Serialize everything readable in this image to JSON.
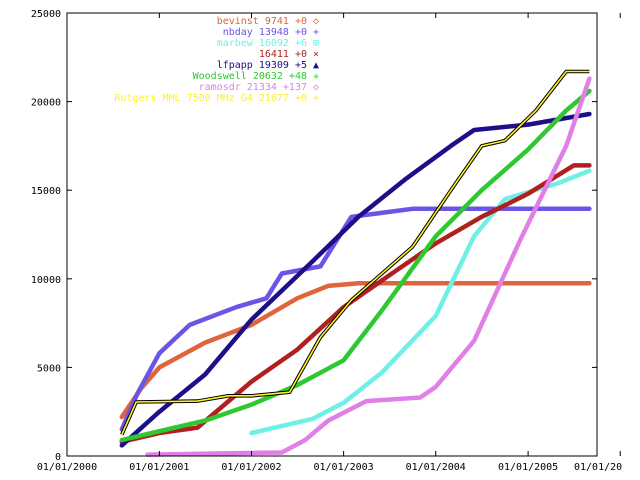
{
  "chart_data": {
    "type": "line",
    "title": "",
    "xlabel": "",
    "ylabel": "",
    "grid": false,
    "legend_position": "top-right",
    "xlim": [
      "2000-01-01",
      "2005-10-01"
    ],
    "ylim": [
      0,
      25000
    ],
    "x_ticks": [
      "01/01/2000",
      "01/01/2001",
      "01/01/2002",
      "01/01/2003",
      "01/01/2004",
      "01/01/2005",
      "01/01/20"
    ],
    "y_ticks": [
      "0",
      "5000",
      "10000",
      "15000",
      "20000",
      "25000"
    ],
    "series": [
      {
        "name": "bevinst",
        "legend_text": "bevinst 9741 +0",
        "marker": "◇",
        "color": "#e0643c",
        "points": [
          [
            "2000-08-05",
            2200
          ],
          [
            "2000-10-20",
            3800
          ],
          [
            "2001-01-01",
            5000
          ],
          [
            "2001-07-01",
            6400
          ],
          [
            "2002-01-01",
            7400
          ],
          [
            "2002-07-01",
            8900
          ],
          [
            "2002-11-01",
            9600
          ],
          [
            "2003-03-01",
            9750
          ],
          [
            "2005-09-01",
            9750
          ]
        ]
      },
      {
        "name": "nbday",
        "legend_text": "nbday 13948 +0",
        "marker": "+",
        "color": "#6a55e6",
        "points": [
          [
            "2000-08-05",
            1500
          ],
          [
            "2000-10-05",
            3500
          ],
          [
            "2001-01-01",
            5800
          ],
          [
            "2001-05-01",
            7400
          ],
          [
            "2001-11-01",
            8400
          ],
          [
            "2002-03-01",
            8900
          ],
          [
            "2002-05-01",
            10300
          ],
          [
            "2002-10-01",
            10700
          ],
          [
            "2003-02-01",
            13500
          ],
          [
            "2003-10-01",
            13950
          ],
          [
            "2005-09-01",
            13950
          ]
        ]
      },
      {
        "name": "marbew",
        "legend_text": "marbew 16092 +6",
        "marker": "⊞",
        "color": "#6ef0e6",
        "points": [
          [
            "2002-01-01",
            1300
          ],
          [
            "2002-09-01",
            2100
          ],
          [
            "2003-01-01",
            3000
          ],
          [
            "2003-06-01",
            4700
          ],
          [
            "2004-01-01",
            7900
          ],
          [
            "2004-06-01",
            12400
          ],
          [
            "2004-10-01",
            14500
          ],
          [
            "2005-05-01",
            15400
          ],
          [
            "2005-09-01",
            16100
          ]
        ]
      },
      {
        "name": "",
        "legend_text": "16411 +0",
        "marker": "×",
        "color": "#b02020",
        "points": [
          [
            "2000-08-05",
            800
          ],
          [
            "2001-01-01",
            1300
          ],
          [
            "2001-06-01",
            1600
          ],
          [
            "2002-01-01",
            4200
          ],
          [
            "2002-07-01",
            6000
          ],
          [
            "2003-01-01",
            8400
          ],
          [
            "2003-07-01",
            10200
          ],
          [
            "2004-01-01",
            12000
          ],
          [
            "2004-07-01",
            13500
          ],
          [
            "2005-01-01",
            14800
          ],
          [
            "2005-07-01",
            16400
          ],
          [
            "2005-09-01",
            16400
          ]
        ]
      },
      {
        "name": "lfpapp",
        "legend_text": "lfpapp 19309 +5",
        "marker": "▲",
        "color": "#1e0f88",
        "points": [
          [
            "2000-08-05",
            600
          ],
          [
            "2001-01-01",
            2500
          ],
          [
            "2001-07-01",
            4600
          ],
          [
            "2002-01-01",
            7700
          ],
          [
            "2002-03-01",
            8500
          ],
          [
            "2002-09-01",
            11000
          ],
          [
            "2003-03-01",
            13500
          ],
          [
            "2003-09-01",
            15600
          ],
          [
            "2004-03-01",
            17500
          ],
          [
            "2004-06-01",
            18400
          ],
          [
            "2005-01-01",
            18700
          ],
          [
            "2005-09-01",
            19300
          ]
        ]
      },
      {
        "name": "Woodswell",
        "legend_text": "Woodswell 20632 +48",
        "marker": "✳",
        "color": "#2ec830",
        "points": [
          [
            "2000-08-05",
            900
          ],
          [
            "2001-01-01",
            1400
          ],
          [
            "2001-07-01",
            2000
          ],
          [
            "2002-01-01",
            2900
          ],
          [
            "2002-07-01",
            4000
          ],
          [
            "2003-01-01",
            5400
          ],
          [
            "2003-06-01",
            8200
          ],
          [
            "2004-01-01",
            12400
          ],
          [
            "2004-07-01",
            15000
          ],
          [
            "2005-01-01",
            17300
          ],
          [
            "2005-06-01",
            19500
          ],
          [
            "2005-09-01",
            20600
          ]
        ]
      },
      {
        "name": "ramosdr",
        "legend_text": "ramosdr 21334 +137",
        "marker": "◇",
        "color": "#e080e6",
        "points": [
          [
            "2000-11-15",
            80
          ],
          [
            "2002-05-01",
            200
          ],
          [
            "2002-08-01",
            900
          ],
          [
            "2002-11-01",
            2000
          ],
          [
            "2003-04-01",
            3100
          ],
          [
            "2003-11-01",
            3300
          ],
          [
            "2004-01-01",
            3900
          ],
          [
            "2004-06-01",
            6500
          ],
          [
            "2004-12-01",
            12200
          ],
          [
            "2005-06-01",
            17500
          ],
          [
            "2005-09-01",
            21300
          ]
        ]
      },
      {
        "name": "Rutgers MML",
        "legend_text": "Rutgers MML  7500 MHz G4  21677 +0",
        "marker": "+",
        "color": "#fff028",
        "points": [
          [
            "2000-08-05",
            1200
          ],
          [
            "2000-10-01",
            3050
          ],
          [
            "2001-06-01",
            3100
          ],
          [
            "2001-10-01",
            3400
          ],
          [
            "2002-01-01",
            3400
          ],
          [
            "2002-06-01",
            3600
          ],
          [
            "2002-10-01",
            6700
          ],
          [
            "2003-02-01",
            8800
          ],
          [
            "2003-10-01",
            11800
          ],
          [
            "2004-03-01",
            15000
          ],
          [
            "2004-07-01",
            17500
          ],
          [
            "2004-10-01",
            17800
          ],
          [
            "2005-02-01",
            19500
          ],
          [
            "2005-06-01",
            21700
          ],
          [
            "2005-09-01",
            21700
          ]
        ]
      }
    ]
  }
}
